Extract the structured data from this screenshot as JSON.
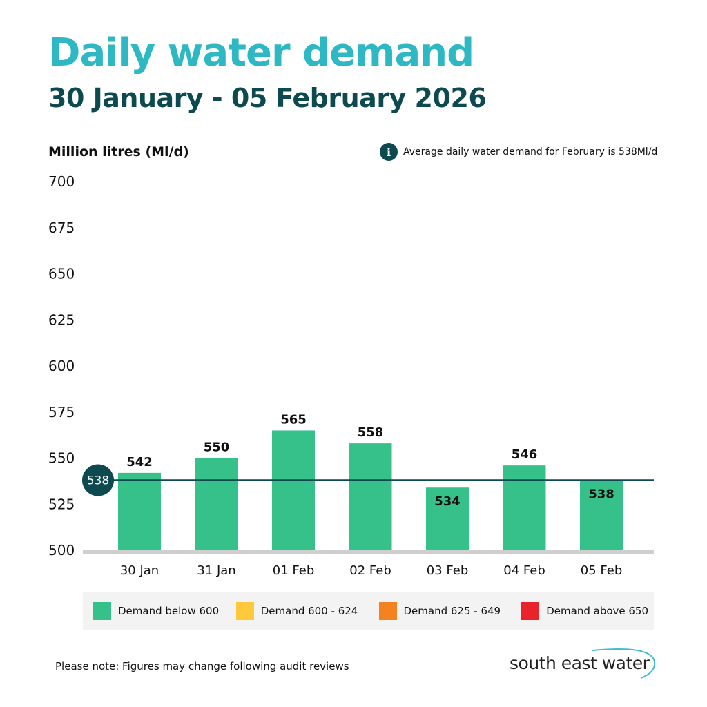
{
  "header": {
    "title": "Daily water demand",
    "subtitle": "30  January - 05 February 2026"
  },
  "note": {
    "icon": "info-icon",
    "text": "Average daily water demand for February  is 538Ml/d"
  },
  "footnote": "Please note: Figures may change following audit reviews",
  "logo": {
    "text": "south east water"
  },
  "colors": {
    "title": "#2db8c4",
    "dark_teal": "#0d4a50",
    "below_600": "#36c08a",
    "600_624": "#ffc93c",
    "625_649": "#f58220",
    "above_650": "#e8232a"
  },
  "chart_data": {
    "type": "bar",
    "ylabel": "Million litres (Ml/d)",
    "ylim": [
      500,
      700
    ],
    "yticks": [
      500,
      525,
      550,
      575,
      600,
      625,
      650,
      675,
      700
    ],
    "grid": false,
    "categories": [
      "30 Jan",
      "31 Jan",
      "01 Feb",
      "02 Feb",
      "03 Feb",
      "04 Feb",
      "05 Feb"
    ],
    "values": [
      542,
      550,
      565,
      558,
      534,
      546,
      538
    ],
    "average_line": {
      "value": 538,
      "label": "538"
    },
    "legend_position": "bottom",
    "legend": [
      {
        "label": "Demand below 600",
        "color": "#36c08a"
      },
      {
        "label": "Demand 600 - 624",
        "color": "#ffc93c"
      },
      {
        "label": "Demand 625 - 649",
        "color": "#f58220"
      },
      {
        "label": "Demand above 650",
        "color": "#e8232a"
      }
    ]
  }
}
